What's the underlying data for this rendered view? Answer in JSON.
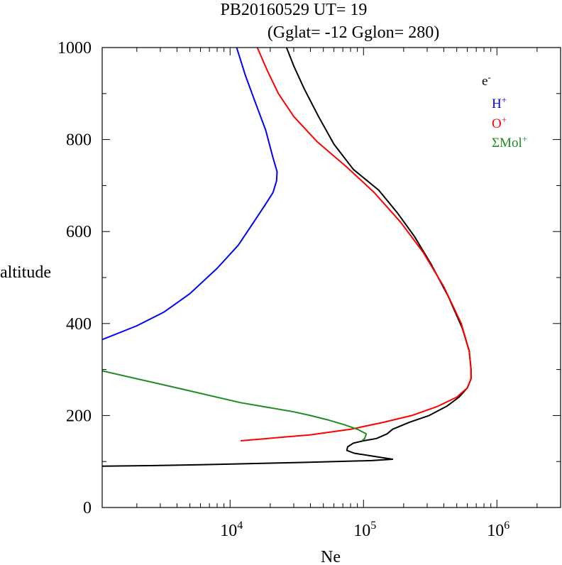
{
  "chart_data": {
    "type": "line",
    "title": "PB20160529   UT=  19",
    "subtitle": "(Gglat= -12   Gglon=  280)",
    "xlabel": "Ne",
    "ylabel": "altitude",
    "x_scale": "log",
    "xlim": [
      1100,
      3000000
    ],
    "ylim": [
      0,
      1000
    ],
    "x_ticks": [
      {
        "value": 10000,
        "base": "10",
        "exp": "4"
      },
      {
        "value": 100000,
        "base": "10",
        "exp": "5"
      },
      {
        "value": 1000000,
        "base": "10",
        "exp": "6"
      }
    ],
    "y_ticks": [
      "0",
      "200",
      "400",
      "600",
      "800",
      "1000"
    ],
    "grid": false,
    "legend_position": "top-right",
    "series": [
      {
        "name": "e-",
        "label": "e",
        "sup": "-",
        "color": "#000000",
        "points": [
          [
            26500,
            1000
          ],
          [
            30000,
            960
          ],
          [
            36000,
            910
          ],
          [
            46000,
            850
          ],
          [
            60000,
            790
          ],
          [
            84000,
            735
          ],
          [
            130000,
            690
          ],
          [
            180000,
            640
          ],
          [
            240000,
            590
          ],
          [
            320000,
            530
          ],
          [
            430000,
            460
          ],
          [
            550000,
            390
          ],
          [
            620000,
            340
          ],
          [
            640000,
            300
          ],
          [
            640000,
            280
          ],
          [
            600000,
            260
          ],
          [
            520000,
            240
          ],
          [
            420000,
            220
          ],
          [
            310000,
            200
          ],
          [
            220000,
            185
          ],
          [
            165000,
            170
          ],
          [
            150000,
            160
          ],
          [
            125000,
            150
          ],
          [
            100000,
            145
          ],
          [
            84000,
            140
          ],
          [
            76000,
            132
          ],
          [
            75000,
            124
          ],
          [
            85000,
            118
          ],
          [
            115000,
            112
          ],
          [
            165000,
            105
          ],
          [
            115000,
            102
          ],
          [
            35000,
            98
          ],
          [
            6000,
            93
          ],
          [
            2500,
            91
          ],
          [
            1100,
            90
          ]
        ]
      },
      {
        "name": "H+",
        "label": "H",
        "sup": "+",
        "color": "#0000ff",
        "points": [
          [
            11200,
            1000
          ],
          [
            13000,
            940
          ],
          [
            15500,
            880
          ],
          [
            18500,
            820
          ],
          [
            21000,
            760
          ],
          [
            22500,
            730
          ],
          [
            22300,
            710
          ],
          [
            21000,
            685
          ],
          [
            18500,
            660
          ],
          [
            15000,
            620
          ],
          [
            11500,
            570
          ],
          [
            8000,
            520
          ],
          [
            5000,
            465
          ],
          [
            3200,
            425
          ],
          [
            2000,
            395
          ],
          [
            1100,
            365
          ]
        ]
      },
      {
        "name": "O+",
        "label": "O",
        "sup": "+",
        "color": "#ff0000",
        "points": [
          [
            16000,
            1000
          ],
          [
            19000,
            950
          ],
          [
            23000,
            900
          ],
          [
            30000,
            850
          ],
          [
            45000,
            795
          ],
          [
            75000,
            740
          ],
          [
            120000,
            685
          ],
          [
            190000,
            620
          ],
          [
            280000,
            555
          ],
          [
            400000,
            480
          ],
          [
            540000,
            400
          ],
          [
            620000,
            340
          ],
          [
            640000,
            300
          ],
          [
            640000,
            280
          ],
          [
            600000,
            260
          ],
          [
            500000,
            240
          ],
          [
            360000,
            220
          ],
          [
            230000,
            200
          ],
          [
            140000,
            185
          ],
          [
            80000,
            170
          ],
          [
            40000,
            158
          ],
          [
            12000,
            145
          ]
        ]
      },
      {
        "name": "ΣMol+",
        "label": "ΣMol",
        "sup": "+",
        "color": "#228b22",
        "points": [
          [
            1100,
            297
          ],
          [
            4000,
            260
          ],
          [
            12000,
            228
          ],
          [
            30000,
            208
          ],
          [
            40000,
            200
          ],
          [
            55000,
            190
          ],
          [
            72000,
            180
          ],
          [
            90000,
            170
          ],
          [
            105000,
            160
          ],
          [
            102000,
            150
          ],
          [
            97000,
            145
          ]
        ]
      }
    ]
  }
}
